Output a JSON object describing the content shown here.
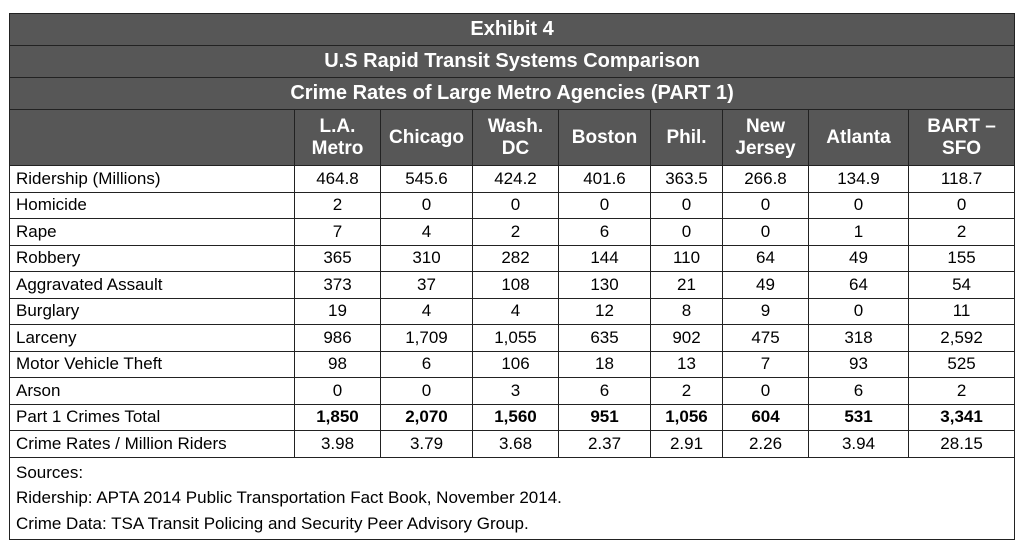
{
  "exhibit_title": "Exhibit 4",
  "subtitle": "U.S Rapid Transit Systems Comparison",
  "table_title": "Crime Rates of Large Metro Agencies (PART 1)",
  "columns": [
    {
      "line1": "L.A.",
      "line2": "Metro"
    },
    {
      "line1": "Chicago",
      "line2": ""
    },
    {
      "line1": "Wash.",
      "line2": "DC"
    },
    {
      "line1": "Boston",
      "line2": ""
    },
    {
      "line1": "Phil.",
      "line2": ""
    },
    {
      "line1": "New",
      "line2": "Jersey"
    },
    {
      "line1": "Atlanta",
      "line2": ""
    },
    {
      "line1": "BART –",
      "line2": "SFO"
    }
  ],
  "rows": [
    {
      "label": "Ridership (Millions)",
      "values": [
        "464.8",
        "545.6",
        "424.2",
        "401.6",
        "363.5",
        "266.8",
        "134.9",
        "118.7"
      ]
    },
    {
      "label": "Homicide",
      "values": [
        "2",
        "0",
        "0",
        "0",
        "0",
        "0",
        "0",
        "0"
      ]
    },
    {
      "label": "Rape",
      "values": [
        "7",
        "4",
        "2",
        "6",
        "0",
        "0",
        "1",
        "2"
      ]
    },
    {
      "label": "Robbery",
      "values": [
        "365",
        "310",
        "282",
        "144",
        "110",
        "64",
        "49",
        "155"
      ]
    },
    {
      "label": "Aggravated Assault",
      "values": [
        "373",
        "37",
        "108",
        "130",
        "21",
        "49",
        "64",
        "54"
      ]
    },
    {
      "label": "Burglary",
      "values": [
        "19",
        "4",
        "4",
        "12",
        "8",
        "9",
        "0",
        "11"
      ]
    },
    {
      "label": "Larceny",
      "values": [
        "986",
        "1,709",
        "1,055",
        "635",
        "902",
        "475",
        "318",
        "2,592"
      ]
    },
    {
      "label": "Motor Vehicle Theft",
      "values": [
        "98",
        "6",
        "106",
        "18",
        "13",
        "7",
        "93",
        "525"
      ]
    },
    {
      "label": "Arson",
      "values": [
        "0",
        "0",
        "3",
        "6",
        "2",
        "0",
        "6",
        "2"
      ]
    },
    {
      "label": "Part 1 Crimes Total",
      "values": [
        "1,850",
        "2,070",
        "1,560",
        "951",
        "1,056",
        "604",
        "531",
        "3,341"
      ],
      "bold": true
    },
    {
      "label": "Crime Rates / Million Riders",
      "values": [
        "3.98",
        "3.79",
        "3.68",
        "2.37",
        "2.91",
        "2.26",
        "3.94",
        "28.15"
      ]
    }
  ],
  "sources": {
    "heading": "Sources:",
    "ridership": "Ridership: APTA 2014 Public Transportation Fact Book, November 2014.",
    "crime": "Crime Data: TSA Transit Policing and Security Peer Advisory Group."
  }
}
